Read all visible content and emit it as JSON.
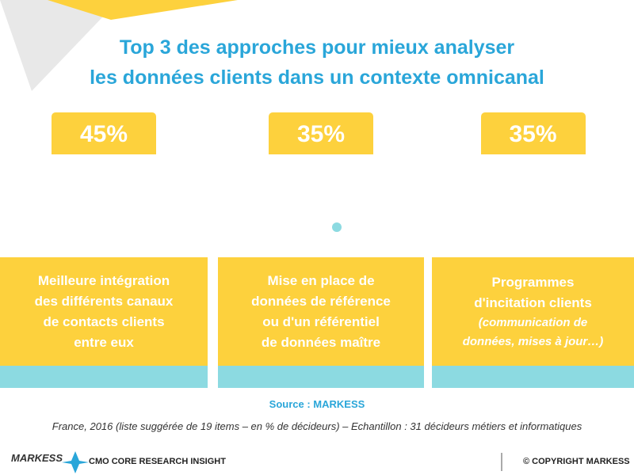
{
  "title": [
    "Top 3 des approches pour mieux analyser",
    "les données clients dans un contexte omnicanal"
  ],
  "cards": [
    {
      "percent": "45%",
      "lines": [
        "Meilleure intégration",
        "des différents canaux",
        "de contacts clients",
        "entre eux"
      ],
      "note": []
    },
    {
      "percent": "35%",
      "lines": [
        "Mise en place de",
        "données de référence",
        "ou d'un référentiel",
        "de données maître"
      ],
      "note": []
    },
    {
      "percent": "35%",
      "lines": [
        "Programmes",
        "d'incitation clients"
      ],
      "note": [
        "(communication de",
        "données, mises à jour…)"
      ]
    }
  ],
  "source": "Source : MARKESS",
  "footnote": "France, 2016 (liste suggérée de 19 items – en % de décideurs) – Echantillon : 31 décideurs métiers et informatiques",
  "footer": {
    "logo": "MARKESS",
    "tagline": "CMO CORE RESEARCH INSIGHT",
    "copyright": "© COPYRIGHT MARKESS"
  }
}
